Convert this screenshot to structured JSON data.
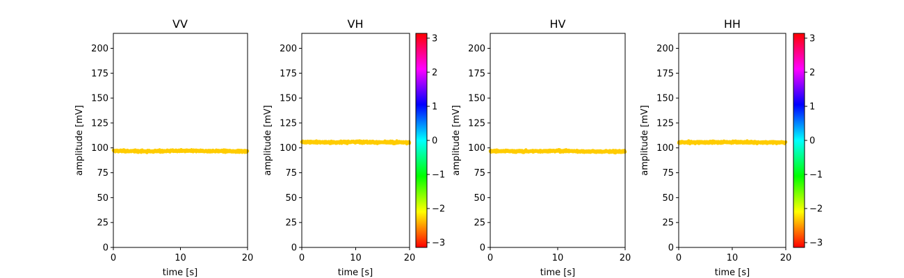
{
  "figure": {
    "background": "#ffffff"
  },
  "chart_data": [
    {
      "type": "scatter",
      "title": "VV",
      "xlabel": "time [s]",
      "ylabel": "amplitude [mV]",
      "xlim": [
        0,
        20
      ],
      "ylim": [
        0,
        215
      ],
      "xticks": [
        "0",
        "10",
        "20"
      ],
      "yticks": [
        "0",
        "25",
        "50",
        "75",
        "100",
        "125",
        "150",
        "175",
        "200"
      ],
      "series": [
        {
          "values": {
            "x": [
              0,
              5,
              10,
              15,
              20
            ],
            "y": [
              97,
              96.5,
              97,
              96.8,
              96.5
            ]
          },
          "color": "#ffcc00",
          "noise": 1.2
        }
      ],
      "grid": false,
      "colorbar": false
    },
    {
      "type": "scatter",
      "title": "VH",
      "xlabel": "time [s]",
      "ylabel": "amplitude [mV]",
      "xlim": [
        0,
        20
      ],
      "ylim": [
        0,
        215
      ],
      "xticks": [
        "0",
        "10",
        "20"
      ],
      "yticks": [
        "0",
        "25",
        "50",
        "75",
        "100",
        "125",
        "150",
        "175",
        "200"
      ],
      "series": [
        {
          "values": {
            "x": [
              0,
              5,
              10,
              15,
              20
            ],
            "y": [
              106,
              105.5,
              106,
              105.5,
              105.5
            ]
          },
          "color": "#ffcc00",
          "noise": 1.2
        }
      ],
      "grid": false,
      "colorbar": true,
      "colorbar_range": [
        -3.14159,
        3.14159
      ],
      "colorbar_ticks": [
        "3",
        "2",
        "1",
        "0",
        "−1",
        "−2",
        "−3"
      ],
      "colormap": "hsv"
    },
    {
      "type": "scatter",
      "title": "HV",
      "xlabel": "time [s]",
      "ylabel": "amplitude [mV]",
      "xlim": [
        0,
        20
      ],
      "ylim": [
        0,
        215
      ],
      "xticks": [
        "0",
        "10",
        "20"
      ],
      "yticks": [
        "0",
        "25",
        "50",
        "75",
        "100",
        "125",
        "150",
        "175",
        "200"
      ],
      "series": [
        {
          "values": {
            "x": [
              0,
              5,
              10,
              15,
              20
            ],
            "y": [
              96.8,
              96.5,
              97,
              96.3,
              96.2
            ]
          },
          "color": "#ffcc00",
          "noise": 1.2
        }
      ],
      "grid": false,
      "colorbar": false
    },
    {
      "type": "scatter",
      "title": "HH",
      "xlabel": "time [s]",
      "ylabel": "amplitude [mV]",
      "xlim": [
        0,
        20
      ],
      "ylim": [
        0,
        215
      ],
      "xticks": [
        "0",
        "10",
        "20"
      ],
      "yticks": [
        "0",
        "25",
        "50",
        "75",
        "100",
        "125",
        "150",
        "175",
        "200"
      ],
      "series": [
        {
          "values": {
            "x": [
              0,
              5,
              10,
              15,
              20
            ],
            "y": [
              105.5,
              105.5,
              105.8,
              105.5,
              105.5
            ]
          },
          "color": "#ffcc00",
          "noise": 1.2
        }
      ],
      "grid": false,
      "colorbar": true,
      "colorbar_range": [
        -3.14159,
        3.14159
      ],
      "colorbar_ticks": [
        "3",
        "2",
        "1",
        "0",
        "−1",
        "−2",
        "−3"
      ],
      "colormap": "hsv"
    }
  ]
}
